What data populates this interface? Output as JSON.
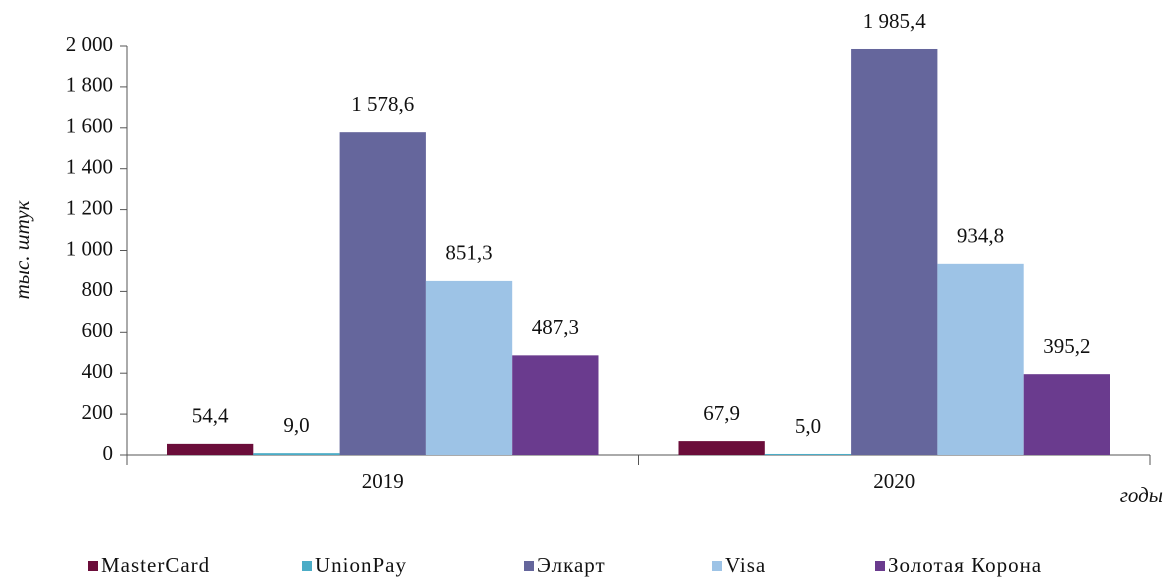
{
  "chart_data": {
    "type": "bar",
    "y_label": "тыс. штук",
    "x_label": "годы",
    "categories": [
      "2019",
      "2020"
    ],
    "series": [
      {
        "name": "MasterCard",
        "color": "#6b0d3a",
        "values": [
          54.4,
          67.9
        ],
        "value_labels": [
          "54,4",
          "67,9"
        ]
      },
      {
        "name": "UnionPay",
        "color": "#4bacc6",
        "values": [
          9.0,
          5.0
        ],
        "value_labels": [
          "9,0",
          "5,0"
        ]
      },
      {
        "name": "Элкарт",
        "color": "#65669c",
        "values": [
          1578.6,
          1985.4
        ],
        "value_labels": [
          "1 578,6",
          "1 985,4"
        ]
      },
      {
        "name": "Visa",
        "color": "#9dc3e6",
        "values": [
          851.3,
          934.8
        ],
        "value_labels": [
          "851,3",
          "934,8"
        ]
      },
      {
        "name": "Золотая Корона",
        "color": "#6a3b8e",
        "values": [
          487.3,
          395.2
        ],
        "value_labels": [
          "487,3",
          "395,2"
        ]
      }
    ],
    "ylim": [
      0,
      2000
    ],
    "yticks": [
      0,
      200,
      400,
      600,
      800,
      {
        "value": 1000,
        "label": "1 000"
      },
      {
        "value": 1200,
        "label": "1 200"
      },
      {
        "value": 1400,
        "label": "1 400"
      },
      {
        "value": 1600,
        "label": "1 600"
      },
      {
        "value": 1800,
        "label": "1 800"
      },
      {
        "value": 2000,
        "label": "2 000"
      }
    ],
    "grid": false,
    "legend": "bottom"
  }
}
